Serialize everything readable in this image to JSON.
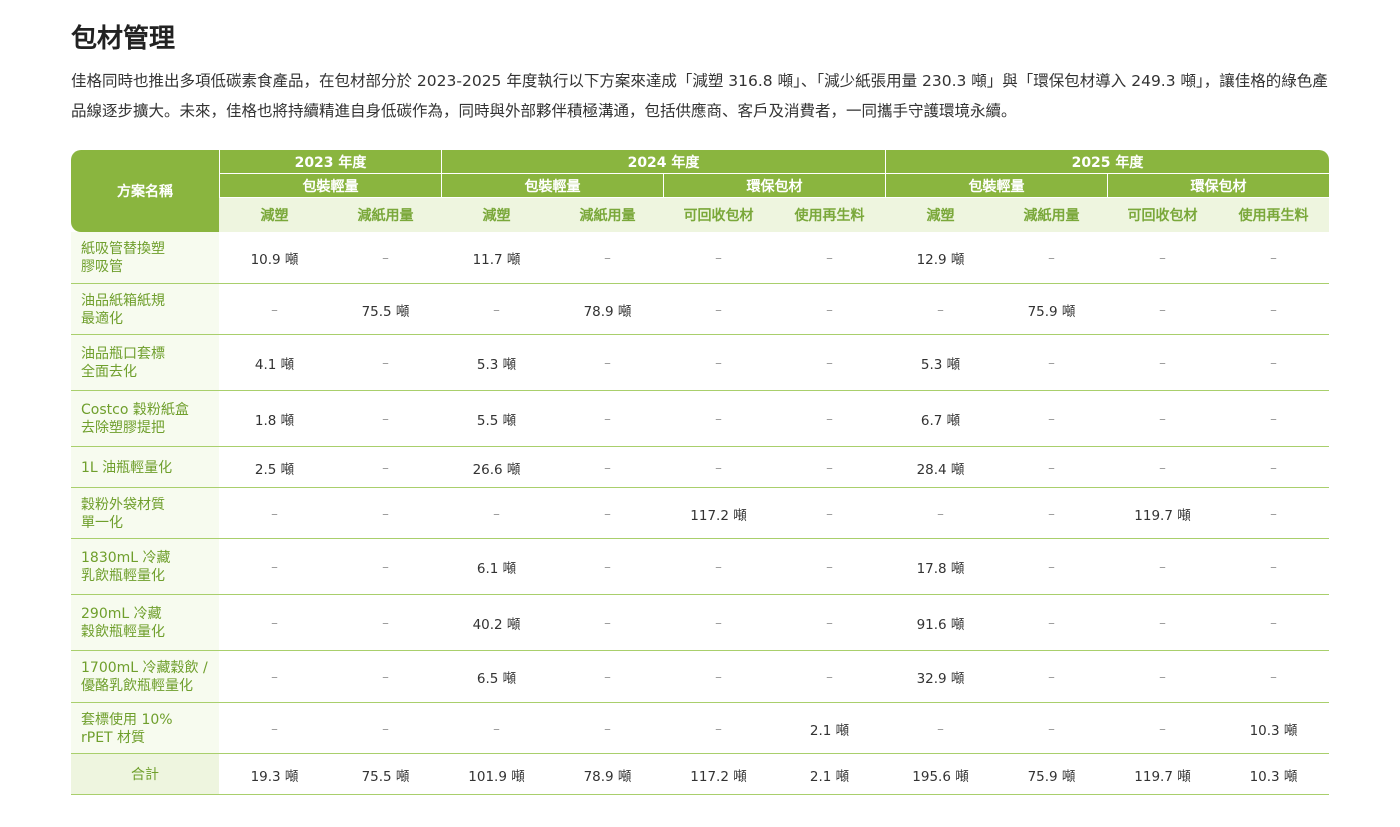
{
  "header": {
    "title": "包材管理",
    "description": "佳格同時也推出多項低碳素食產品，在包材部分於 2023-2025 年度執行以下方案來達成「減塑 316.8 噸」、「減少紙張用量 230.3 噸」與「環保包材導入 249.3 噸」，讓佳格的綠色產品線逐步擴大。未來，佳格也將持續精進自身低碳作為，同時與外部夥伴積極溝通，包括供應商、客戶及消費者，一同攜手守護環境永續。"
  },
  "table": {
    "name_header": "方案名稱",
    "years": [
      {
        "label": "2023 年度",
        "span": 2
      },
      {
        "label": "2024 年度",
        "span": 4
      },
      {
        "label": "2025 年度",
        "span": 4
      }
    ],
    "groups": [
      {
        "label": "包裝輕量",
        "span": 2
      },
      {
        "label": "包裝輕量",
        "span": 2
      },
      {
        "label": "環保包材",
        "span": 2
      },
      {
        "label": "包裝輕量",
        "span": 2
      },
      {
        "label": "環保包材",
        "span": 2
      }
    ],
    "columns": [
      "減塑",
      "減紙用量",
      "減塑",
      "減紙用量",
      "可回收包材",
      "使用再生料",
      "減塑",
      "減紙用量",
      "可回收包材",
      "使用再生料"
    ],
    "rows": [
      {
        "name": "紙吸管替換塑\n膠吸管",
        "cells": [
          "10.9 噸",
          "–",
          "11.7 噸",
          "–",
          "–",
          "–",
          "12.9 噸",
          "–",
          "–",
          "–"
        ]
      },
      {
        "name": "油品紙箱紙規\n最適化",
        "cells": [
          "–",
          "75.5 噸",
          "–",
          "78.9 噸",
          "–",
          "–",
          "–",
          "75.9 噸",
          "–",
          "–"
        ]
      },
      {
        "name": "油品瓶口套標\n全面去化",
        "cells": [
          "4.1 噸",
          "–",
          "5.3 噸",
          "–",
          "–",
          "–",
          "5.3 噸",
          "–",
          "–",
          "–"
        ]
      },
      {
        "name": "Costco 穀粉紙盒\n去除塑膠提把",
        "cells": [
          "1.8 噸",
          "–",
          "5.5 噸",
          "–",
          "–",
          "–",
          "6.7 噸",
          "–",
          "–",
          "–"
        ]
      },
      {
        "name": "1L 油瓶輕量化",
        "cells": [
          "2.5 噸",
          "–",
          "26.6 噸",
          "–",
          "–",
          "–",
          "28.4 噸",
          "–",
          "–",
          "–"
        ]
      },
      {
        "name": "穀粉外袋材質\n單一化",
        "cells": [
          "–",
          "–",
          "–",
          "–",
          "117.2 噸",
          "–",
          "–",
          "–",
          "119.7 噸",
          "–"
        ]
      },
      {
        "name": "1830mL 冷藏\n乳飲瓶輕量化",
        "cells": [
          "–",
          "–",
          "6.1 噸",
          "–",
          "–",
          "–",
          "17.8 噸",
          "–",
          "–",
          "–"
        ]
      },
      {
        "name": "290mL 冷藏\n穀飲瓶輕量化",
        "cells": [
          "–",
          "–",
          "40.2 噸",
          "–",
          "–",
          "–",
          "91.6 噸",
          "–",
          "–",
          "–"
        ]
      },
      {
        "name": "1700mL 冷藏穀飲 /\n優酪乳飲瓶輕量化",
        "cells": [
          "–",
          "–",
          "6.5 噸",
          "–",
          "–",
          "–",
          "32.9 噸",
          "–",
          "–",
          "–"
        ]
      },
      {
        "name": "套標使用 10%\nrPET 材質",
        "cells": [
          "–",
          "–",
          "–",
          "–",
          "–",
          "2.1 噸",
          "–",
          "–",
          "–",
          "10.3 噸"
        ]
      }
    ],
    "total": {
      "name": "合計",
      "cells": [
        "19.3 噸",
        "75.5 噸",
        "101.9 噸",
        "78.9 噸",
        "117.2 噸",
        "2.1 噸",
        "195.6 噸",
        "75.9 噸",
        "119.7 噸",
        "10.3 噸"
      ]
    }
  }
}
